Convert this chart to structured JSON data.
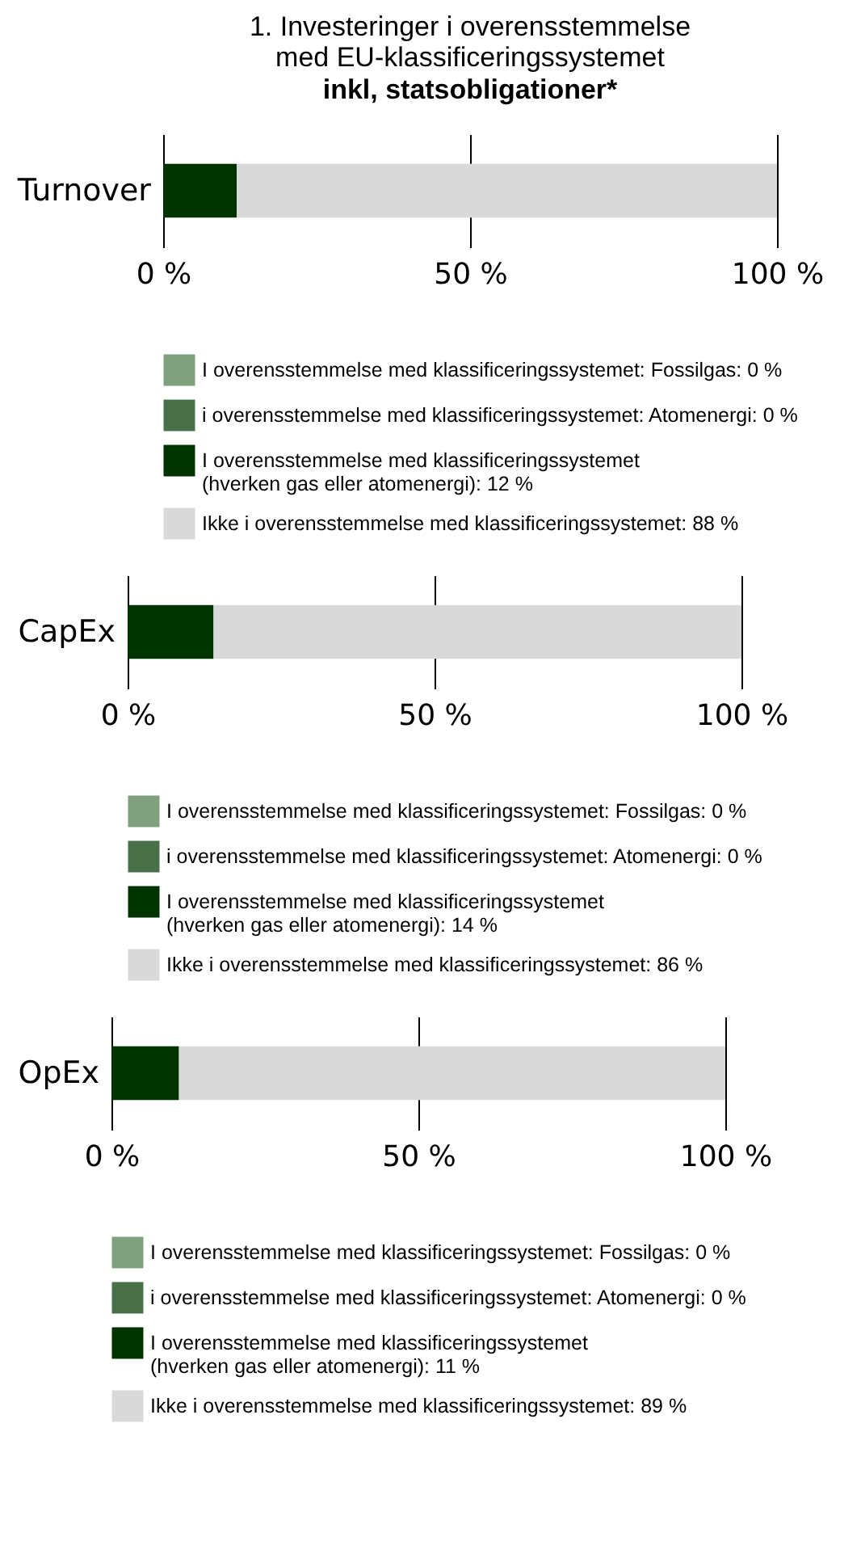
{
  "chart_data": [
    {
      "type": "bar",
      "title": "1. Investeringer i overensstemmelse\nmed EU-klassificeringssystemet",
      "subtitle": "inkl, statsobligationer*",
      "orientation": "horizontal",
      "stacked": true,
      "categories": [
        "Turnover"
      ],
      "series": [
        {
          "name": "I overensstemmelse med klassificeringssystemet: Fossilgas: 0 %",
          "color": "#7f9f7f",
          "values": [
            0
          ]
        },
        {
          "name": "i overensstemmelse med klassificeringssystemet: Atomenergi: 0 %",
          "color": "#4a704a",
          "values": [
            0
          ]
        },
        {
          "name": "I overensstemmelse med klassificeringssystemet\n(hverken gas eller atomenergi): 12 %",
          "color": "#003300",
          "values": [
            12
          ]
        },
        {
          "name": "Ikke i overensstemmelse med klassificeringssystemet: 88 %",
          "color": "#d9d9d9",
          "values": [
            88
          ]
        }
      ],
      "xlim": [
        0,
        100
      ],
      "xticks": [
        {
          "value": 0,
          "label": "0 %"
        },
        {
          "value": 50,
          "label": "50 %"
        },
        {
          "value": 100,
          "label": "100 %"
        }
      ],
      "grid": "x",
      "legend": "bottom"
    },
    {
      "type": "bar",
      "orientation": "horizontal",
      "stacked": true,
      "categories": [
        "CapEx"
      ],
      "series": [
        {
          "name": "I overensstemmelse med klassificeringssystemet: Fossilgas: 0 %",
          "color": "#7f9f7f",
          "values": [
            0
          ]
        },
        {
          "name": "i overensstemmelse med klassificeringssystemet: Atomenergi: 0 %",
          "color": "#4a704a",
          "values": [
            0
          ]
        },
        {
          "name": "I overensstemmelse med klassificeringssystemet\n(hverken gas eller atomenergi): 14 %",
          "color": "#003300",
          "values": [
            14
          ]
        },
        {
          "name": "Ikke i overensstemmelse med klassificeringssystemet: 86 %",
          "color": "#d9d9d9",
          "values": [
            86
          ]
        }
      ],
      "xlim": [
        0,
        100
      ],
      "xticks": [
        {
          "value": 0,
          "label": "0 %"
        },
        {
          "value": 50,
          "label": "50 %"
        },
        {
          "value": 100,
          "label": "100 %"
        }
      ],
      "grid": "x",
      "legend": "bottom"
    },
    {
      "type": "bar",
      "orientation": "horizontal",
      "stacked": true,
      "categories": [
        "OpEx"
      ],
      "series": [
        {
          "name": "I overensstemmelse med klassificeringssystemet: Fossilgas: 0 %",
          "color": "#7f9f7f",
          "values": [
            0
          ]
        },
        {
          "name": "i overensstemmelse med klassificeringssystemet: Atomenergi: 0 %",
          "color": "#4a704a",
          "values": [
            0
          ]
        },
        {
          "name": "I overensstemmelse med klassificeringssystemet\n(hverken gas eller atomenergi): 11 %",
          "color": "#003300",
          "values": [
            11
          ]
        },
        {
          "name": "Ikke i overensstemmelse med klassificeringssystemet: 89 %",
          "color": "#d9d9d9",
          "values": [
            89
          ]
        }
      ],
      "xlim": [
        0,
        100
      ],
      "xticks": [
        {
          "value": 0,
          "label": "0 %"
        },
        {
          "value": 50,
          "label": "50 %"
        },
        {
          "value": 100,
          "label": "100 %"
        }
      ],
      "grid": "x",
      "legend": "bottom"
    }
  ]
}
